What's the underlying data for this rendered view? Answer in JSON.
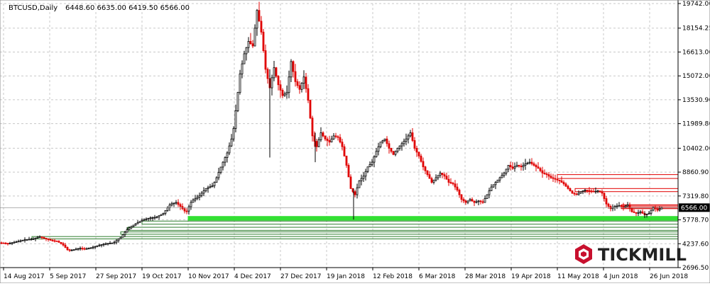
{
  "header": {
    "symbol": "BTCUSD,Daily",
    "ohlc": "6448.60 6635.00 6419.50 6566.00"
  },
  "watermark": {
    "text": "TICKMILL",
    "icon": "tickmill-logo-icon"
  },
  "colors": {
    "bull": "#000000",
    "bear": "#e00000",
    "grid": "#c8c8c8",
    "support": "#33e033",
    "support_box": "#2e7d2e",
    "resistance": "#e00000",
    "resistance_fill": "#f08080",
    "price_label_bg": "#000000",
    "price_label_text": "#ffffff"
  },
  "chart_data": {
    "type": "candlestick",
    "yticks": [
      "19742.00",
      "18154.25",
      "16613.00",
      "15072.00",
      "13530.90",
      "11989.80",
      "10402.00",
      "8860.90",
      "7319.80",
      "5778.70",
      "4237.60",
      "2696.50"
    ],
    "xticks": [
      "14 Aug 2017",
      "5 Sep 2017",
      "27 Sep 2017",
      "19 Oct 2017",
      "10 Nov 2017",
      "4 Dec 2017",
      "27 Dec 2017",
      "19 Jan 2018",
      "12 Feb 2018",
      "6 Mar 2018",
      "28 Mar 2018",
      "19 Apr 2018",
      "11 May 2018",
      "4 Jun 2018",
      "26 Jun 2018"
    ],
    "ylim": [
      2696.5,
      19742
    ],
    "current_price": "6566.00",
    "current_price_value": 6566,
    "price_path": [
      [
        0,
        4300
      ],
      [
        12,
        4250
      ],
      [
        22,
        4350
      ],
      [
        35,
        4500
      ],
      [
        47,
        4550
      ],
      [
        55,
        4700
      ],
      [
        65,
        4550
      ],
      [
        72,
        4450
      ],
      [
        80,
        4400
      ],
      [
        88,
        4200
      ],
      [
        96,
        3800
      ],
      [
        104,
        3850
      ],
      [
        112,
        3950
      ],
      [
        120,
        3900
      ],
      [
        130,
        4000
      ],
      [
        140,
        4150
      ],
      [
        150,
        4250
      ],
      [
        160,
        4300
      ],
      [
        170,
        4650
      ],
      [
        180,
        5200
      ],
      [
        190,
        5500
      ],
      [
        200,
        5750
      ],
      [
        210,
        5900
      ],
      [
        220,
        5950
      ],
      [
        230,
        6200
      ],
      [
        240,
        6800
      ],
      [
        248,
        6900
      ],
      [
        255,
        6600
      ],
      [
        262,
        6250
      ],
      [
        270,
        7000
      ],
      [
        280,
        7300
      ],
      [
        290,
        7800
      ],
      [
        300,
        8000
      ],
      [
        305,
        8500
      ],
      [
        312,
        9300
      ],
      [
        320,
        10100
      ],
      [
        328,
        11300
      ],
      [
        333,
        13200
      ],
      [
        338,
        15200
      ],
      [
        344,
        16500
      ],
      [
        350,
        17300
      ],
      [
        356,
        17000
      ],
      [
        362,
        19300
      ],
      [
        368,
        17900
      ],
      [
        374,
        15500
      ],
      [
        380,
        14300
      ],
      [
        386,
        15600
      ],
      [
        392,
        14500
      ],
      [
        398,
        13800
      ],
      [
        404,
        14000
      ],
      [
        410,
        16000
      ],
      [
        416,
        14700
      ],
      [
        422,
        14200
      ],
      [
        428,
        15000
      ],
      [
        434,
        13500
      ],
      [
        440,
        11200
      ],
      [
        446,
        10500
      ],
      [
        452,
        11400
      ],
      [
        458,
        11000
      ],
      [
        464,
        10800
      ],
      [
        470,
        11200
      ],
      [
        476,
        11100
      ],
      [
        482,
        10500
      ],
      [
        488,
        9300
      ],
      [
        494,
        7800
      ],
      [
        500,
        7400
      ],
      [
        506,
        8300
      ],
      [
        512,
        8600
      ],
      [
        518,
        9200
      ],
      [
        524,
        9500
      ],
      [
        530,
        10200
      ],
      [
        536,
        10800
      ],
      [
        542,
        11000
      ],
      [
        548,
        10400
      ],
      [
        554,
        10000
      ],
      [
        560,
        10400
      ],
      [
        566,
        10700
      ],
      [
        572,
        11000
      ],
      [
        578,
        11400
      ],
      [
        584,
        10400
      ],
      [
        590,
        9900
      ],
      [
        596,
        9200
      ],
      [
        602,
        8700
      ],
      [
        608,
        8200
      ],
      [
        614,
        8500
      ],
      [
        620,
        8800
      ],
      [
        626,
        8600
      ],
      [
        632,
        8200
      ],
      [
        638,
        8100
      ],
      [
        644,
        7700
      ],
      [
        650,
        7100
      ],
      [
        656,
        6900
      ],
      [
        662,
        7100
      ],
      [
        668,
        6900
      ],
      [
        674,
        7000
      ],
      [
        680,
        6900
      ],
      [
        686,
        7400
      ],
      [
        692,
        7900
      ],
      [
        698,
        8200
      ],
      [
        704,
        8500
      ],
      [
        710,
        8800
      ],
      [
        716,
        9300
      ],
      [
        722,
        9100
      ],
      [
        728,
        9300
      ],
      [
        734,
        9200
      ],
      [
        740,
        9400
      ],
      [
        746,
        9500
      ],
      [
        752,
        9300
      ],
      [
        758,
        9100
      ],
      [
        764,
        8800
      ],
      [
        770,
        8700
      ],
      [
        776,
        8500
      ],
      [
        782,
        8400
      ],
      [
        788,
        8300
      ],
      [
        794,
        8100
      ],
      [
        800,
        7800
      ],
      [
        806,
        7500
      ],
      [
        812,
        7400
      ],
      [
        818,
        7600
      ],
      [
        824,
        7700
      ],
      [
        830,
        7650
      ],
      [
        836,
        7600
      ],
      [
        842,
        7650
      ],
      [
        848,
        7500
      ],
      [
        854,
        6800
      ],
      [
        860,
        6500
      ],
      [
        866,
        6650
      ],
      [
        872,
        6700
      ],
      [
        878,
        6600
      ],
      [
        884,
        6750
      ],
      [
        890,
        6300
      ],
      [
        896,
        6200
      ],
      [
        902,
        6300
      ],
      [
        908,
        6100
      ],
      [
        914,
        6200
      ],
      [
        920,
        6600
      ],
      [
        926,
        6400
      ],
      [
        932,
        6566
      ]
    ],
    "zones": [
      {
        "type": "support",
        "from_x": 265,
        "to_x": 955,
        "y_top": 6000,
        "y_bottom": 5750,
        "style": "fill"
      },
      {
        "type": "support",
        "from_x": 200,
        "to_x": 955,
        "y_top": 5700,
        "y_bottom": 5500,
        "style": "box"
      },
      {
        "type": "support",
        "from_x": 180,
        "to_x": 955,
        "y_top": 5300,
        "y_bottom": 5100,
        "style": "box"
      },
      {
        "type": "support",
        "from_x": 170,
        "to_x": 955,
        "y_top": 5000,
        "y_bottom": 4850,
        "style": "box"
      },
      {
        "type": "support",
        "from_x": 45,
        "to_x": 955,
        "y_top": 4700,
        "y_bottom": 4550,
        "style": "box"
      },
      {
        "type": "resistance",
        "from_x": 785,
        "to_x": 955,
        "y_top": 8700,
        "y_bottom": 8450,
        "style": "box"
      },
      {
        "type": "resistance",
        "from_x": 810,
        "to_x": 955,
        "y_top": 7800,
        "y_bottom": 7600,
        "style": "box"
      },
      {
        "type": "resistance",
        "from_x": 875,
        "to_x": 955,
        "y_top": 6750,
        "y_bottom": 6500,
        "style": "fill"
      }
    ]
  }
}
